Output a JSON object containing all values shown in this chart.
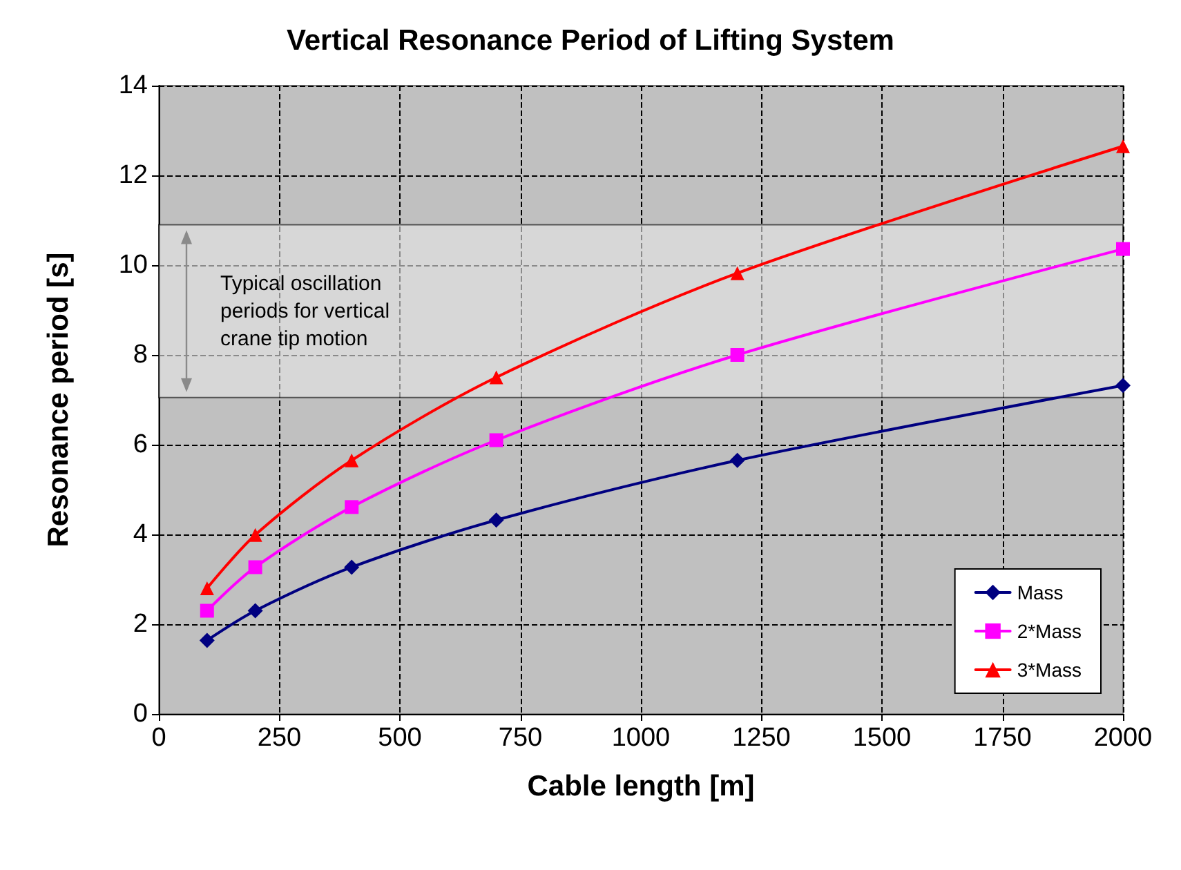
{
  "chart_data": {
    "type": "line",
    "title": "Vertical Resonance Period of Lifting System",
    "xlabel": "Cable length [m]",
    "ylabel": "Resonance period [s]",
    "x": [
      100,
      200,
      400,
      700,
      1200,
      2000
    ],
    "series": [
      {
        "name": "Mass",
        "color": "#000080",
        "marker": "diamond",
        "values": [
          1.64,
          2.3,
          3.27,
          4.32,
          5.65,
          7.32
        ]
      },
      {
        "name": "2*Mass",
        "color": "#ff00ff",
        "marker": "square",
        "values": [
          2.3,
          3.27,
          4.61,
          6.1,
          8.0,
          10.36
        ]
      },
      {
        "name": "3*Mass",
        "color": "#ff0000",
        "marker": "triangle",
        "values": [
          2.8,
          3.99,
          5.65,
          7.5,
          9.82,
          12.65
        ]
      }
    ],
    "xlim": [
      0,
      2000
    ],
    "xticks": [
      0,
      250,
      500,
      750,
      1000,
      1250,
      1500,
      1750,
      2000
    ],
    "ylim": [
      0,
      14
    ],
    "yticks": [
      0,
      2,
      4,
      6,
      8,
      10,
      12,
      14
    ],
    "bands": [
      {
        "axis": "y",
        "from": 7.05,
        "to": 10.9,
        "label": "Typical oscillation\nperiods for vertical\ncrane tip motion",
        "color": "#e6e6e6"
      }
    ],
    "grid": true,
    "legend": "bottom right",
    "line_style": "solid"
  }
}
